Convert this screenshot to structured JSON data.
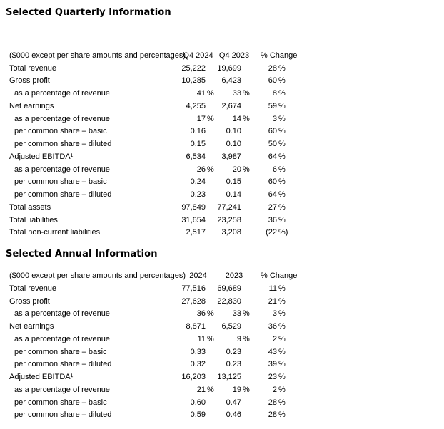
{
  "page": {
    "background_color": "#ffffff",
    "text_color": "#000000"
  },
  "quarterly": {
    "title": "Selected Quarterly Information",
    "header": {
      "label": "($000 except per share amounts and percentages)",
      "col1": "Q4 2024",
      "col2": "Q4 2023",
      "col3": "% Change"
    },
    "rows": [
      {
        "label": "Total revenue",
        "indent": false,
        "values": [
          "25,222",
          "19,699",
          "28 %"
        ]
      },
      {
        "label": "Gross profit",
        "indent": false,
        "values": [
          "10,285",
          "6,423",
          "60 %"
        ]
      },
      {
        "label": "as a percentage of revenue",
        "indent": true,
        "values": [
          "41 %",
          "33 %",
          "8 %"
        ]
      },
      {
        "label": "Net earnings",
        "indent": false,
        "values": [
          "4,255",
          "2,674",
          "59 %"
        ]
      },
      {
        "label": "as a percentage of revenue",
        "indent": true,
        "values": [
          "17 %",
          "14 %",
          "3 %"
        ]
      },
      {
        "label": "per common share – basic",
        "indent": true,
        "values": [
          "0.16",
          "0.10",
          "60 %"
        ]
      },
      {
        "label": "per common share – diluted",
        "indent": true,
        "values": [
          "0.15",
          "0.10",
          "50 %"
        ]
      },
      {
        "label": "Adjusted EBITDA¹",
        "indent": false,
        "values": [
          "6,534",
          "3,987",
          "64 %"
        ]
      },
      {
        "label": "as a percentage of revenue",
        "indent": true,
        "values": [
          "26 %",
          "20 %",
          "6 %"
        ]
      },
      {
        "label": "per common share – basic",
        "indent": true,
        "values": [
          "0.24",
          "0.15",
          "60 %"
        ]
      },
      {
        "label": "per common share – diluted",
        "indent": true,
        "values": [
          "0.23",
          "0.14",
          "64 %"
        ]
      },
      {
        "label": "Total assets",
        "indent": false,
        "values": [
          "97,849",
          "77,241",
          "27 %"
        ]
      },
      {
        "label": "Total liabilities",
        "indent": false,
        "values": [
          "31,654",
          "23,258",
          "36 %"
        ]
      },
      {
        "label": "Total non-current liabilities",
        "indent": false,
        "values": [
          "2,517",
          "3,208",
          "(22 %)"
        ]
      }
    ]
  },
  "annual": {
    "title": "Selected Annual Information",
    "header": {
      "label": "($000 except per share amounts and percentages)",
      "col1": "2024",
      "col2": "2023",
      "col3": "% Change"
    },
    "rows": [
      {
        "label": "Total revenue",
        "indent": false,
        "values": [
          "77,516",
          "69,689",
          "11 %"
        ]
      },
      {
        "label": "Gross profit",
        "indent": false,
        "values": [
          "27,628",
          "22,830",
          "21 %"
        ]
      },
      {
        "label": "as a percentage of revenue",
        "indent": true,
        "values": [
          "36 %",
          "33 %",
          "3 %"
        ]
      },
      {
        "label": "Net earnings",
        "indent": false,
        "values": [
          "8,871",
          "6,529",
          "36 %"
        ]
      },
      {
        "label": "as a percentage of revenue",
        "indent": true,
        "values": [
          "11 %",
          "9 %",
          "2 %"
        ]
      },
      {
        "label": "per common share – basic",
        "indent": true,
        "values": [
          "0.33",
          "0.23",
          "43 %"
        ]
      },
      {
        "label": "per common share – diluted",
        "indent": true,
        "values": [
          "0.32",
          "0.23",
          "39 %"
        ]
      },
      {
        "label": "Adjusted EBITDA¹",
        "indent": false,
        "values": [
          "16,203",
          "13,125",
          "23 %"
        ]
      },
      {
        "label": "as a percentage of revenue",
        "indent": true,
        "values": [
          "21 %",
          "19 %",
          "2 %"
        ]
      },
      {
        "label": "per common share – basic",
        "indent": true,
        "values": [
          "0.60",
          "0.47",
          "28 %"
        ]
      },
      {
        "label": "per common share – diluted",
        "indent": true,
        "values": [
          "0.59",
          "0.46",
          "28 %"
        ]
      }
    ]
  }
}
